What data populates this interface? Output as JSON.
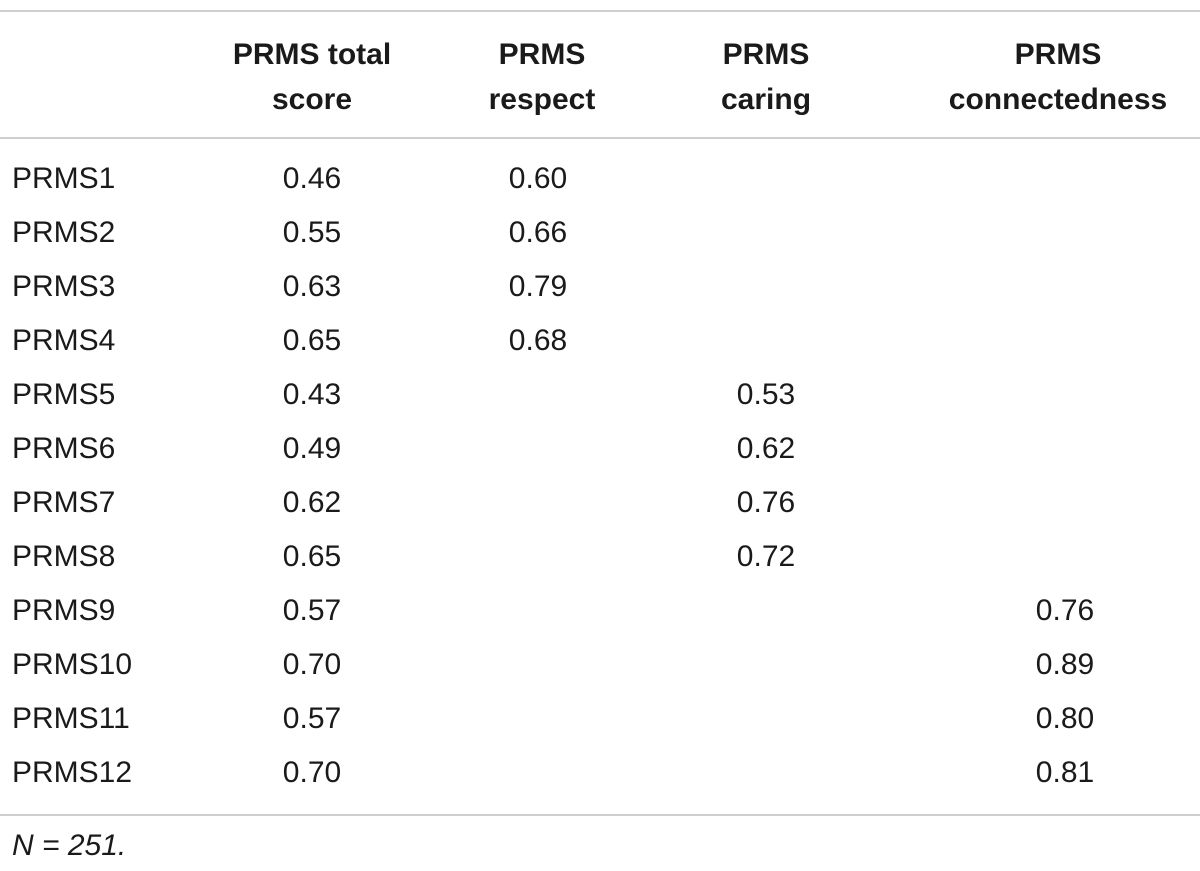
{
  "table": {
    "headers": [
      [
        "",
        ""
      ],
      [
        "PRMS total",
        "score"
      ],
      [
        "PRMS",
        "respect"
      ],
      [
        "PRMS",
        "caring"
      ],
      [
        "PRMS",
        "connectedness"
      ]
    ],
    "rows": [
      {
        "label": "PRMS1",
        "total": "0.46",
        "respect": "0.60",
        "caring": "",
        "connectedness": ""
      },
      {
        "label": "PRMS2",
        "total": "0.55",
        "respect": "0.66",
        "caring": "",
        "connectedness": ""
      },
      {
        "label": "PRMS3",
        "total": "0.63",
        "respect": "0.79",
        "caring": "",
        "connectedness": ""
      },
      {
        "label": "PRMS4",
        "total": "0.65",
        "respect": "0.68",
        "caring": "",
        "connectedness": ""
      },
      {
        "label": "PRMS5",
        "total": "0.43",
        "respect": "",
        "caring": "0.53",
        "connectedness": ""
      },
      {
        "label": "PRMS6",
        "total": "0.49",
        "respect": "",
        "caring": "0.62",
        "connectedness": ""
      },
      {
        "label": "PRMS7",
        "total": "0.62",
        "respect": "",
        "caring": "0.76",
        "connectedness": ""
      },
      {
        "label": "PRMS8",
        "total": "0.65",
        "respect": "",
        "caring": "0.72",
        "connectedness": ""
      },
      {
        "label": "PRMS9",
        "total": "0.57",
        "respect": "",
        "caring": "",
        "connectedness": "0.76"
      },
      {
        "label": "PRMS10",
        "total": "0.70",
        "respect": "",
        "caring": "",
        "connectedness": "0.89"
      },
      {
        "label": "PRMS11",
        "total": "0.57",
        "respect": "",
        "caring": "",
        "connectedness": "0.80"
      },
      {
        "label": "PRMS12",
        "total": "0.70",
        "respect": "",
        "caring": "",
        "connectedness": "0.81"
      }
    ],
    "footnote": "N = 251."
  }
}
